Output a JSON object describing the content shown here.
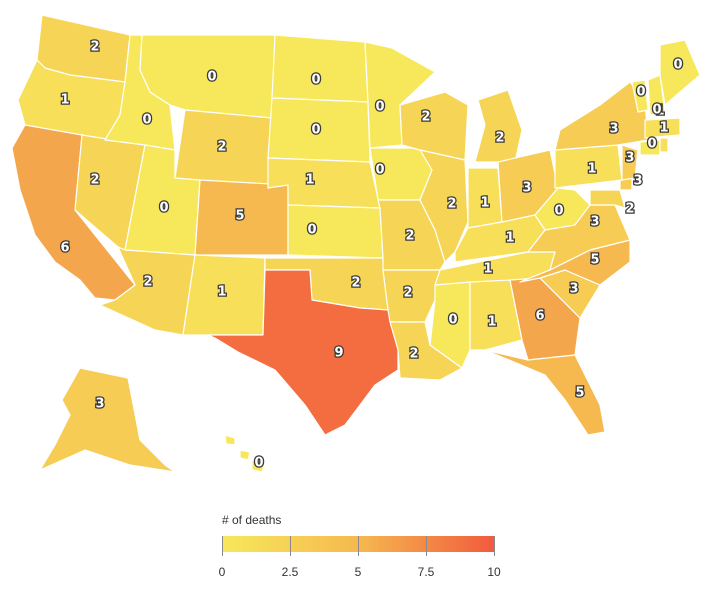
{
  "legend": {
    "title": "# of deaths",
    "ticks": [
      "0",
      "2.5",
      "5",
      "7.5",
      "10"
    ],
    "min": 0,
    "max": 10,
    "colors": [
      "#f7e85b",
      "#f5b94f",
      "#f25a3e"
    ]
  },
  "states": {
    "WA": 2,
    "OR": 1,
    "CA": 6,
    "NV": 2,
    "ID": 0,
    "MT": 0,
    "WY": 2,
    "UT": 0,
    "AZ": 2,
    "CO": 5,
    "NM": 1,
    "ND": 0,
    "SD": 0,
    "NE": 1,
    "KS": 0,
    "OK": 2,
    "TX": 9,
    "MN": 0,
    "IA": 0,
    "MO": 2,
    "AR": 2,
    "LA": 2,
    "WI": 2,
    "IL": 2,
    "MI": 2,
    "IN": 1,
    "OH": 3,
    "KY": 1,
    "TN": 1,
    "MS": 0,
    "AL": 1,
    "GA": 6,
    "FL": 5,
    "SC": 3,
    "NC": 5,
    "VA": 3,
    "WV": 0,
    "MD": 2,
    "DE": 3,
    "PA": 1,
    "NJ": 3,
    "NY": 3,
    "CT": 0,
    "RI": 1,
    "MA": 1,
    "VT": 0,
    "NH": 0,
    "ME": 0,
    "AK": 3,
    "HI": 0
  }
}
